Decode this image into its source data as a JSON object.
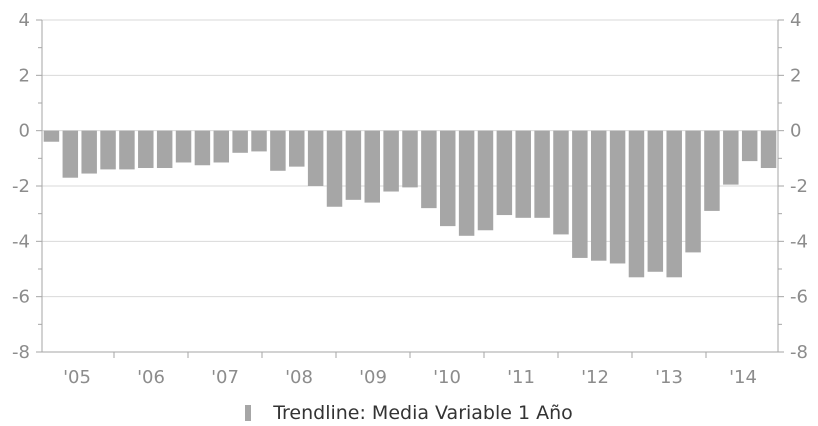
{
  "chart_data": {
    "type": "bar",
    "ylim": [
      -8,
      4
    ],
    "yticks": [
      4,
      2,
      0,
      -2,
      -4,
      -6,
      -8
    ],
    "y_tick_labels": [
      "4",
      "2",
      "0",
      "-2",
      "-4",
      "-6",
      "-8"
    ],
    "x_tick_labels": [
      "'05",
      "'06",
      "'07",
      "'08",
      "'09",
      "'10",
      "'11",
      "'12",
      "'13",
      "'14"
    ],
    "grid": true,
    "legend_position": "bottom",
    "bar_color": "#a6a6a6",
    "series": [
      {
        "name": "Trendline: Media Variable 1 Año",
        "values": [
          -0.4,
          -1.7,
          -1.55,
          -1.4,
          -1.4,
          -1.35,
          -1.35,
          -1.15,
          -1.25,
          -1.15,
          -0.8,
          -0.75,
          -1.45,
          -1.3,
          -2.0,
          -2.75,
          -2.5,
          -2.6,
          -2.2,
          -2.05,
          -2.8,
          -3.45,
          -3.8,
          -3.6,
          -3.05,
          -3.15,
          -3.15,
          -3.75,
          -4.6,
          -4.7,
          -4.8,
          -5.3,
          -5.1,
          -5.3,
          -4.4,
          -2.9,
          -1.95,
          -1.1,
          -1.35
        ]
      }
    ]
  }
}
